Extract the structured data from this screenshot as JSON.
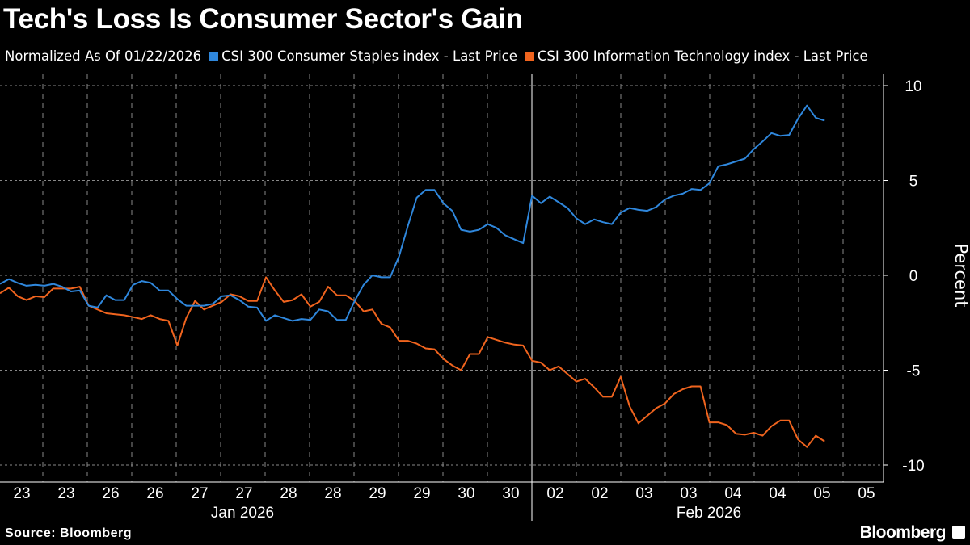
{
  "chart_data": {
    "type": "line",
    "title": "Tech's Loss Is Consumer Sector's Gain",
    "subtitle": "Normalized As Of 01/22/2026",
    "ylabel": "Percent",
    "xlabel": "",
    "ylim": [
      -10.5,
      10.5
    ],
    "yticks": [
      10,
      5,
      0,
      -5,
      -10
    ],
    "grid": true,
    "legend_position": "top-left",
    "x_tick_labels": [
      "23",
      "23",
      "26",
      "26",
      "27",
      "27",
      "28",
      "28",
      "29",
      "29",
      "30",
      "30",
      "02",
      "02",
      "03",
      "03",
      "04",
      "04",
      "05",
      "05"
    ],
    "month_labels": [
      "Jan 2026",
      "Feb 2026"
    ],
    "series": [
      {
        "name": "CSI 300 Consumer Staples index - Last Price",
        "color": "#2f87dc",
        "values": [
          -0.45,
          -0.2,
          -0.4,
          -0.55,
          -0.5,
          -0.55,
          -0.45,
          -0.6,
          -0.85,
          -0.8,
          -1.6,
          -1.7,
          -1.05,
          -1.3,
          -1.3,
          -0.5,
          -0.3,
          -0.4,
          -0.8,
          -0.8,
          -1.25,
          -1.6,
          -1.6,
          -1.6,
          -1.5,
          -1.1,
          -1.05,
          -1.3,
          -1.65,
          -1.7,
          -2.4,
          -2.1,
          -2.25,
          -2.4,
          -2.3,
          -2.35,
          -1.8,
          -1.9,
          -2.35,
          -2.35,
          -1.35,
          -0.5,
          0,
          -0.1,
          -0.1,
          1.0,
          2.6,
          4.1,
          4.5,
          4.5,
          3.8,
          3.4,
          2.4,
          2.3,
          2.4,
          2.7,
          2.5,
          2.1,
          1.9,
          1.7,
          4.2,
          3.8,
          4.15,
          3.85,
          3.55,
          3.0,
          2.7,
          2.95,
          2.8,
          2.7,
          3.3,
          3.55,
          3.45,
          3.4,
          3.6,
          4.0,
          4.2,
          4.3,
          4.55,
          4.5,
          4.85,
          5.75,
          5.85,
          6.0,
          6.15,
          6.65,
          7.05,
          7.5,
          7.35,
          7.4,
          8.25,
          8.95,
          8.3,
          8.15
        ]
      },
      {
        "name": "CSI 300 Information Technology index - Last Price",
        "color": "#f0641e",
        "values": [
          -0.95,
          -0.65,
          -1.1,
          -1.3,
          -1.1,
          -1.15,
          -0.7,
          -0.7,
          -0.7,
          -0.6,
          -1.6,
          -1.8,
          -2.0,
          -2.05,
          -2.1,
          -2.2,
          -2.3,
          -2.1,
          -2.3,
          -2.4,
          -3.7,
          -2.25,
          -1.35,
          -1.8,
          -1.6,
          -1.4,
          -1.0,
          -1.1,
          -1.35,
          -1.35,
          -0.1,
          -0.8,
          -1.4,
          -1.3,
          -1.0,
          -1.65,
          -1.4,
          -0.6,
          -1.05,
          -1.05,
          -1.35,
          -1.9,
          -1.8,
          -2.55,
          -2.75,
          -3.45,
          -3.45,
          -3.6,
          -3.85,
          -3.9,
          -4.4,
          -4.75,
          -5.0,
          -4.15,
          -4.15,
          -3.25,
          -3.4,
          -3.55,
          -3.65,
          -3.7,
          -4.5,
          -4.6,
          -5.0,
          -4.8,
          -5.2,
          -5.6,
          -5.45,
          -5.9,
          -6.4,
          -6.4,
          -5.35,
          -6.9,
          -7.8,
          -7.4,
          -7.0,
          -6.75,
          -6.25,
          -6.0,
          -5.85,
          -5.85,
          -7.75,
          -7.75,
          -7.9,
          -8.35,
          -8.4,
          -8.3,
          -8.45,
          -7.95,
          -7.65,
          -7.65,
          -8.65,
          -9.05,
          -8.45,
          -8.75
        ]
      }
    ]
  },
  "footer": {
    "source": "Source: Bloomberg",
    "brand": "Bloomberg"
  }
}
